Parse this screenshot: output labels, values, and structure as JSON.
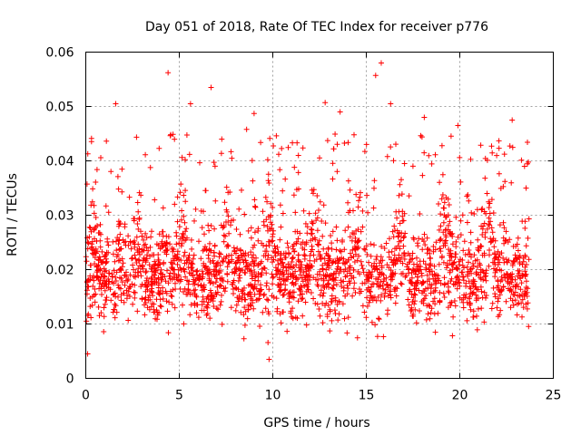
{
  "chart_data": {
    "type": "scatter",
    "title": "Day 051 of 2018, Rate Of TEC Index for receiver p776",
    "xlabel": "GPS time / hours",
    "ylabel": "ROTI / TECUs",
    "xlim": [
      0,
      25
    ],
    "ylim": [
      0,
      0.06
    ],
    "xticks": [
      0,
      5,
      10,
      15,
      20,
      25
    ],
    "xtick_labels": [
      "0",
      "5",
      "10",
      "15",
      "20",
      "25"
    ],
    "yticks": [
      0,
      0.01,
      0.02,
      0.03,
      0.04,
      0.05,
      0.06
    ],
    "ytick_labels": [
      "0",
      "0.01",
      "0.02",
      "0.03",
      "0.04",
      "0.05",
      "0.06"
    ],
    "grid": true,
    "marker": "+",
    "color": "#ff0000",
    "series": [
      {
        "name": "ROTI",
        "data_range_hours": [
          0,
          23.7
        ],
        "typical_range": [
          0.005,
          0.035
        ],
        "notable_points": [
          {
            "x": 1.6,
            "y": 0.0505
          },
          {
            "x": 4.4,
            "y": 0.0562
          },
          {
            "x": 5.6,
            "y": 0.0505
          },
          {
            "x": 6.7,
            "y": 0.0535
          },
          {
            "x": 8.6,
            "y": 0.0458
          },
          {
            "x": 9.0,
            "y": 0.0487
          },
          {
            "x": 12.8,
            "y": 0.0507
          },
          {
            "x": 13.6,
            "y": 0.049
          },
          {
            "x": 15.5,
            "y": 0.0557
          },
          {
            "x": 15.8,
            "y": 0.058
          },
          {
            "x": 16.3,
            "y": 0.0505
          },
          {
            "x": 18.1,
            "y": 0.048
          },
          {
            "x": 19.9,
            "y": 0.0465
          },
          {
            "x": 22.8,
            "y": 0.0475
          },
          {
            "x": 9.8,
            "y": 0.0035
          },
          {
            "x": 0.1,
            "y": 0.0045
          }
        ]
      }
    ]
  }
}
